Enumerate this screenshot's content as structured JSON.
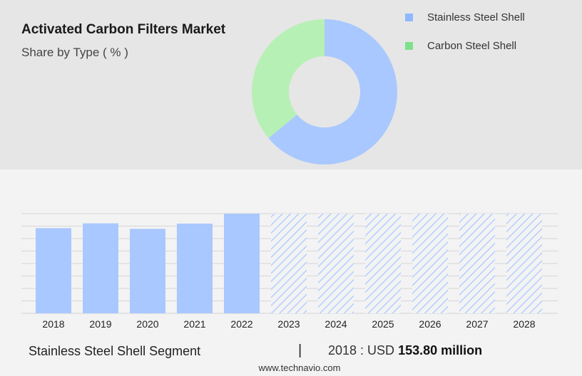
{
  "header": {
    "title": "Activated Carbon Filters Market",
    "subtitle": "Share by Type ( % )"
  },
  "chart_data": [
    {
      "type": "pie",
      "variant": "donut",
      "slices": [
        {
          "label": "Stainless Steel Shell",
          "value": 64,
          "color": "#a9c8ff"
        },
        {
          "label": "Carbon Steel Shell",
          "value": 36,
          "color": "#b7f0b5"
        }
      ],
      "legend_position": "right"
    },
    {
      "type": "bar",
      "categories": [
        "2018",
        "2019",
        "2020",
        "2021",
        "2022",
        "2023",
        "2024",
        "2025",
        "2026",
        "2027",
        "2028"
      ],
      "values": [
        153.8,
        162.5,
        152.5,
        162.0,
        180.0,
        180.0,
        180.0,
        180.0,
        180.0,
        180.0,
        180.0
      ],
      "forecast_from_index": 5,
      "ylim": [
        0,
        180
      ],
      "grid": true,
      "color": "#a9c8ff",
      "hatch_color": "#a9c8ff"
    }
  ],
  "legend": {
    "items": [
      {
        "label": "Stainless Steel Shell",
        "color": "#8fb8ff"
      },
      {
        "label": "Carbon Steel Shell",
        "color": "#7fe08a"
      }
    ]
  },
  "footer": {
    "segment": "Stainless Steel Shell Segment",
    "divider": "|",
    "value_prefix": "2018 : USD",
    "value_bold": "153.80 million"
  },
  "source": "www.technavio.com"
}
